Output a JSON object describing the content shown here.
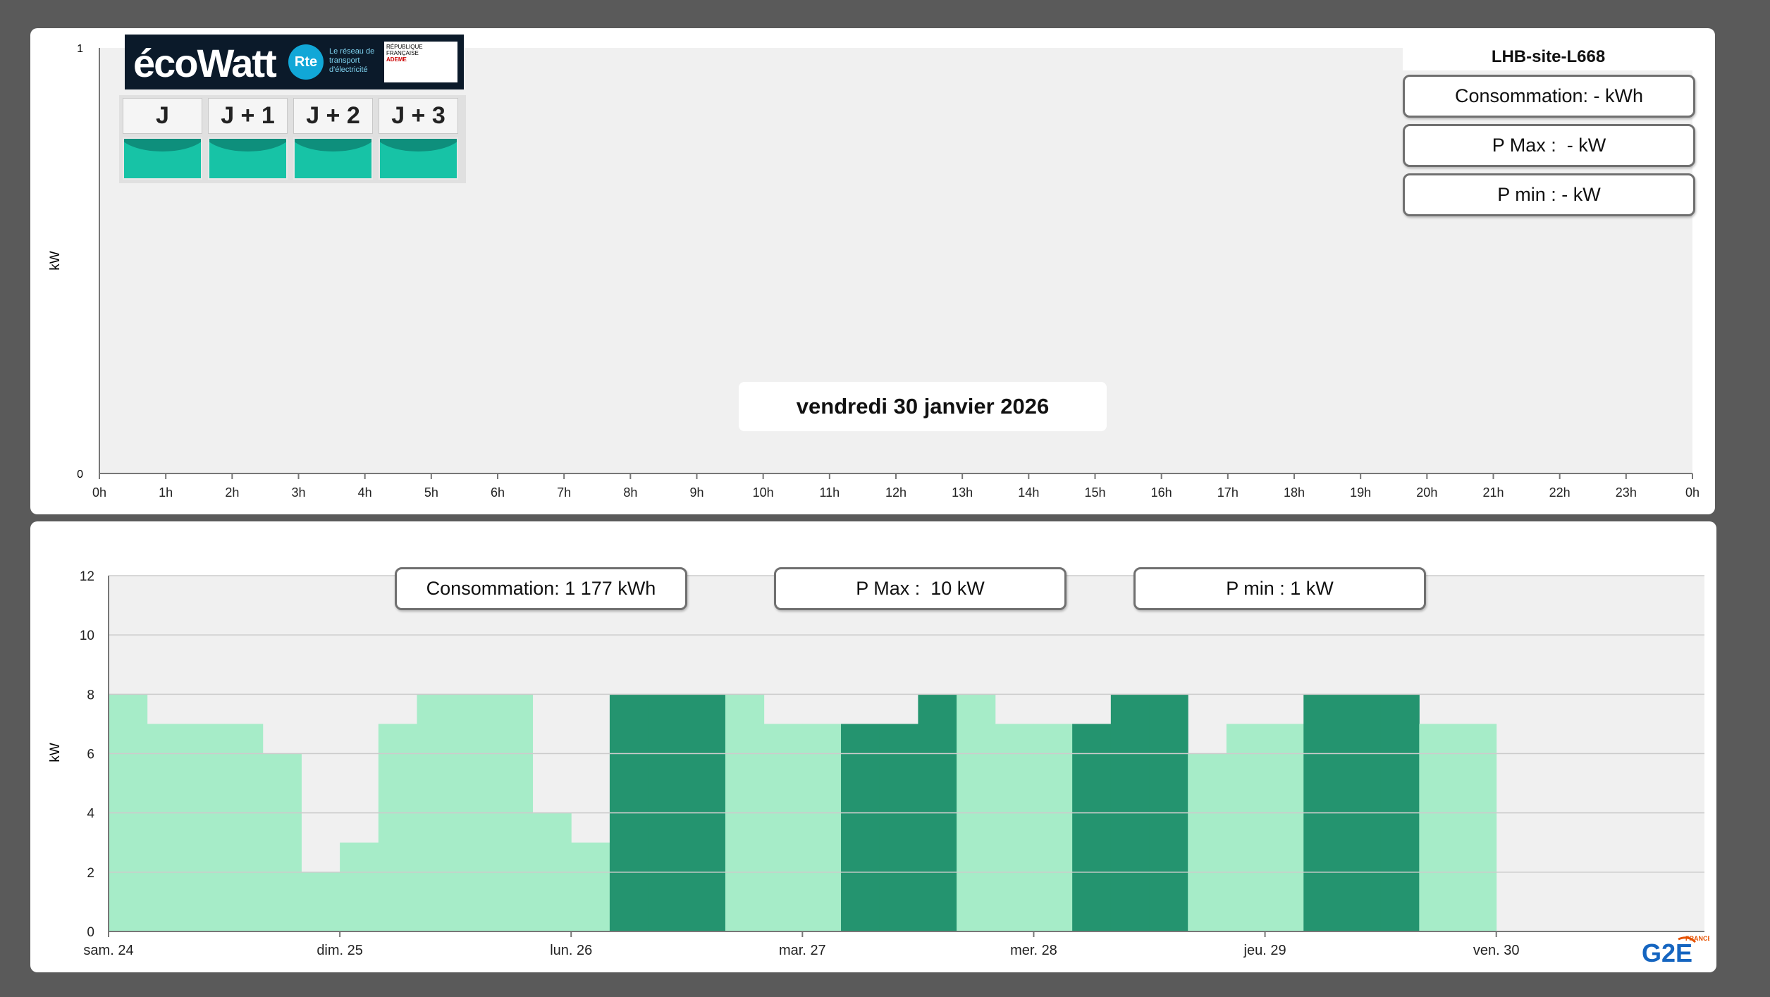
{
  "top_chart": {
    "site_name": "LHB-site-L668",
    "consommation": "Consommation: - kWh",
    "pmax": "P Max :  - kW",
    "pmin": "P min : - kW",
    "date_label": "vendredi 30 janvier 2026",
    "ylabel": "kW",
    "y_ticks": [
      "0",
      "1"
    ],
    "x_ticks": [
      "0h",
      "1h",
      "2h",
      "3h",
      "4h",
      "5h",
      "6h",
      "7h",
      "8h",
      "9h",
      "10h",
      "11h",
      "12h",
      "13h",
      "14h",
      "15h",
      "16h",
      "17h",
      "18h",
      "19h",
      "20h",
      "21h",
      "22h",
      "23h",
      "0h"
    ]
  },
  "ecowatt": {
    "brand": "écoWatt",
    "rte": "Rte",
    "tagline": "Le réseau de transport d'électricité",
    "rf": "RÉPUBLIQUE FRANÇAISE",
    "ademe": "ADEME",
    "days": [
      "J",
      "J + 1",
      "J + 2",
      "J + 3"
    ],
    "signal_color": "#17c3a6"
  },
  "bottom_chart": {
    "consommation": "Consommation: 1 177 kWh",
    "pmax": "P Max :  10 kW",
    "pmin": "P min : 1 kW",
    "ylabel": "kW",
    "x_day_labels": [
      "sam. 24",
      "dim. 25",
      "lun. 26",
      "mar. 27",
      "mer. 28",
      "jeu. 29",
      "ven. 30"
    ],
    "colors": {
      "light": "#a6ecc8",
      "dark": "#24946f",
      "bg_grey": "#f0f0f0"
    },
    "logo_text": "G2E",
    "logo_sub": "FRANCE"
  },
  "chart_data": {
    "type": "bar",
    "ylabel": "kW",
    "ylim": [
      0,
      12
    ],
    "y_ticks": [
      0,
      2,
      4,
      6,
      8,
      10,
      12
    ],
    "x_start": "sam. 24 00:00",
    "x_end": "ven. 30 00:00",
    "categories": [
      "sam. 24 00h",
      "sam. 24 04h",
      "sam. 24 08h",
      "sam. 24 12h",
      "sam. 24 16h",
      "sam. 24 20h",
      "dim. 25 00h",
      "dim. 25 04h",
      "dim. 25 08h",
      "dim. 25 12h",
      "dim. 25 16h",
      "dim. 25 20h",
      "lun. 26 00h",
      "lun. 26 04h",
      "lun. 26 08h",
      "lun. 26 12h",
      "lun. 26 16h",
      "lun. 26 20h",
      "mar. 27 00h",
      "mar. 27 04h",
      "mar. 27 08h",
      "mar. 27 12h",
      "mar. 27 16h",
      "mar. 27 20h",
      "mer. 28 00h",
      "mer. 28 04h",
      "mer. 28 08h",
      "mer. 28 12h",
      "mer. 28 16h",
      "mer. 28 20h",
      "jeu. 29 00h",
      "jeu. 29 04h",
      "jeu. 29 08h",
      "jeu. 29 12h",
      "jeu. 29 16h",
      "jeu. 29 20h"
    ],
    "series": [
      {
        "values": [
          8,
          7,
          7,
          7,
          6,
          2,
          3,
          7,
          8,
          8,
          8,
          4,
          3,
          8,
          8,
          8,
          8,
          7,
          7,
          7,
          7,
          8,
          8,
          7,
          7,
          7,
          8,
          8,
          6,
          7,
          7,
          8,
          8,
          8,
          7,
          7
        ]
      }
    ],
    "highlight_periods_dark": [
      [
        26.25,
        26.7
      ],
      [
        27.25,
        27.7
      ],
      [
        28.25,
        28.7
      ],
      [
        29.25,
        29.7
      ]
    ]
  }
}
